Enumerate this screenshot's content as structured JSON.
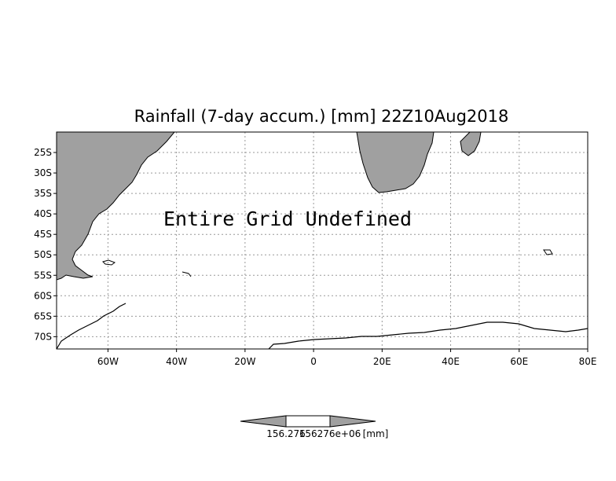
{
  "title": "Rainfall (7-day accum.) [mm] 22Z10Aug2018",
  "overlay_text": "Entire Grid Undefined",
  "map": {
    "lon_range": [
      -75,
      80
    ],
    "lat_range": [
      -73,
      -20
    ],
    "lon_ticks": [
      {
        "value": -60,
        "label": "60W"
      },
      {
        "value": -40,
        "label": "40W"
      },
      {
        "value": -20,
        "label": "20W"
      },
      {
        "value": 0,
        "label": "0"
      },
      {
        "value": 20,
        "label": "20E"
      },
      {
        "value": 40,
        "label": "40E"
      },
      {
        "value": 60,
        "label": "60E"
      },
      {
        "value": 80,
        "label": "80E"
      }
    ],
    "lat_ticks": [
      {
        "value": -25,
        "label": "25S"
      },
      {
        "value": -30,
        "label": "30S"
      },
      {
        "value": -35,
        "label": "35S"
      },
      {
        "value": -40,
        "label": "40S"
      },
      {
        "value": -45,
        "label": "45S"
      },
      {
        "value": -50,
        "label": "50S"
      },
      {
        "value": -55,
        "label": "55S"
      },
      {
        "value": -60,
        "label": "60S"
      },
      {
        "value": -65,
        "label": "65S"
      },
      {
        "value": -70,
        "label": "70S"
      }
    ],
    "grid": true,
    "colors": {
      "land": "#a0a0a0",
      "ocean": "#ffffff",
      "coast": "#000000",
      "rivers": "#ffffff",
      "grid": "#999999"
    }
  },
  "colorbar": {
    "labels": [
      "156.276",
      "156276e+06",
      "[mm]"
    ]
  }
}
